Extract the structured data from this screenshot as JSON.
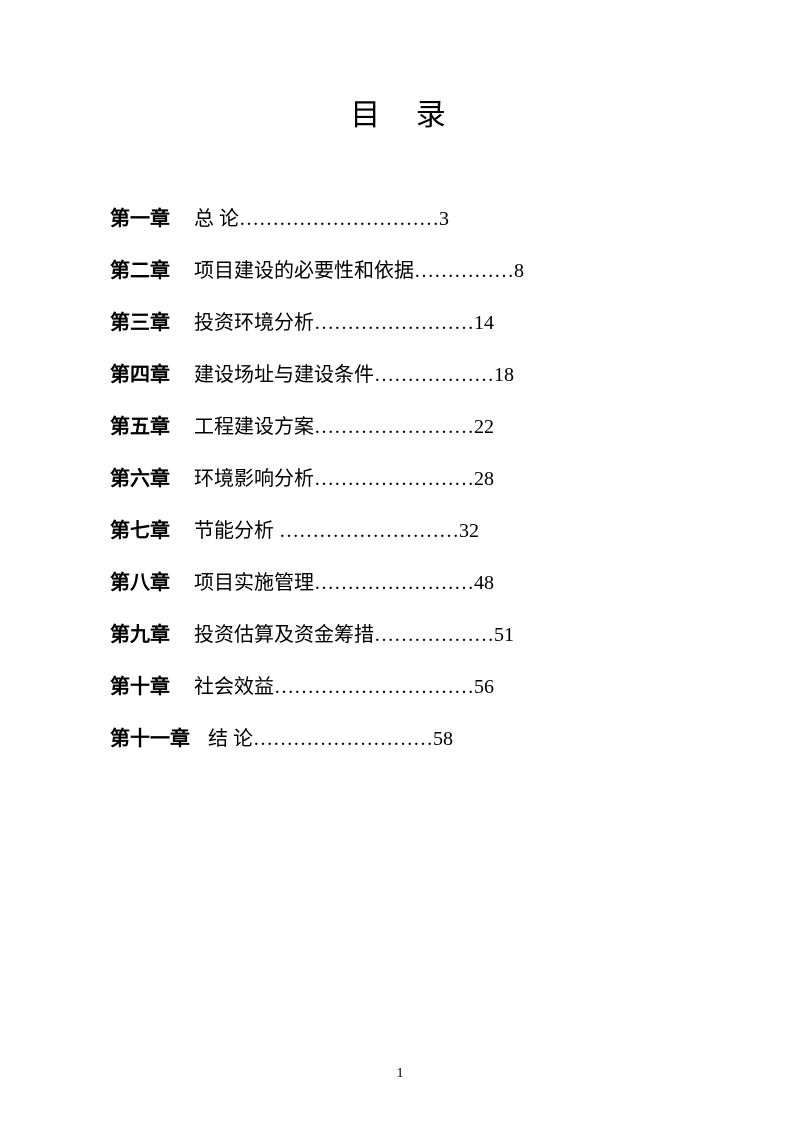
{
  "title": "目  录",
  "toc": [
    {
      "chapter": "第一章",
      "title": "总  论",
      "dots": "…………………………",
      "page": "3"
    },
    {
      "chapter": "第二章",
      "title": "项目建设的必要性和依据",
      "dots": "……………",
      "page": "8"
    },
    {
      "chapter": "第三章",
      "title": "投资环境分析",
      "dots": "……………………",
      "page": "14"
    },
    {
      "chapter": "第四章",
      "title": "建设场址与建设条件",
      "dots": "………………",
      "page": "18"
    },
    {
      "chapter": "第五章",
      "title": "工程建设方案",
      "dots": "……………………",
      "page": "22"
    },
    {
      "chapter": "第六章",
      "title": "环境影响分析",
      "dots": "……………………",
      "page": "28"
    },
    {
      "chapter": "第七章",
      "title": "节能分析 ",
      "dots": "………………………",
      "page": "32"
    },
    {
      "chapter": "第八章",
      "title": "项目实施管理",
      "dots": "……………………",
      "page": "48"
    },
    {
      "chapter": "第九章",
      "title": "投资估算及资金筹措",
      "dots": "………………",
      "page": "51"
    },
    {
      "chapter": "第十章",
      "title": "社会效益",
      "dots": "…………………………",
      "page": "56"
    },
    {
      "chapter": "第十一章",
      "title": "结  论",
      "dots": "………………………",
      "page": "58",
      "wide_label": true
    }
  ],
  "footer_page": "1",
  "colors": {
    "background": "#ffffff",
    "text": "#000000"
  },
  "typography": {
    "title_fontsize": 30,
    "body_fontsize": 20,
    "footer_fontsize": 14,
    "line_spacing": 22
  }
}
